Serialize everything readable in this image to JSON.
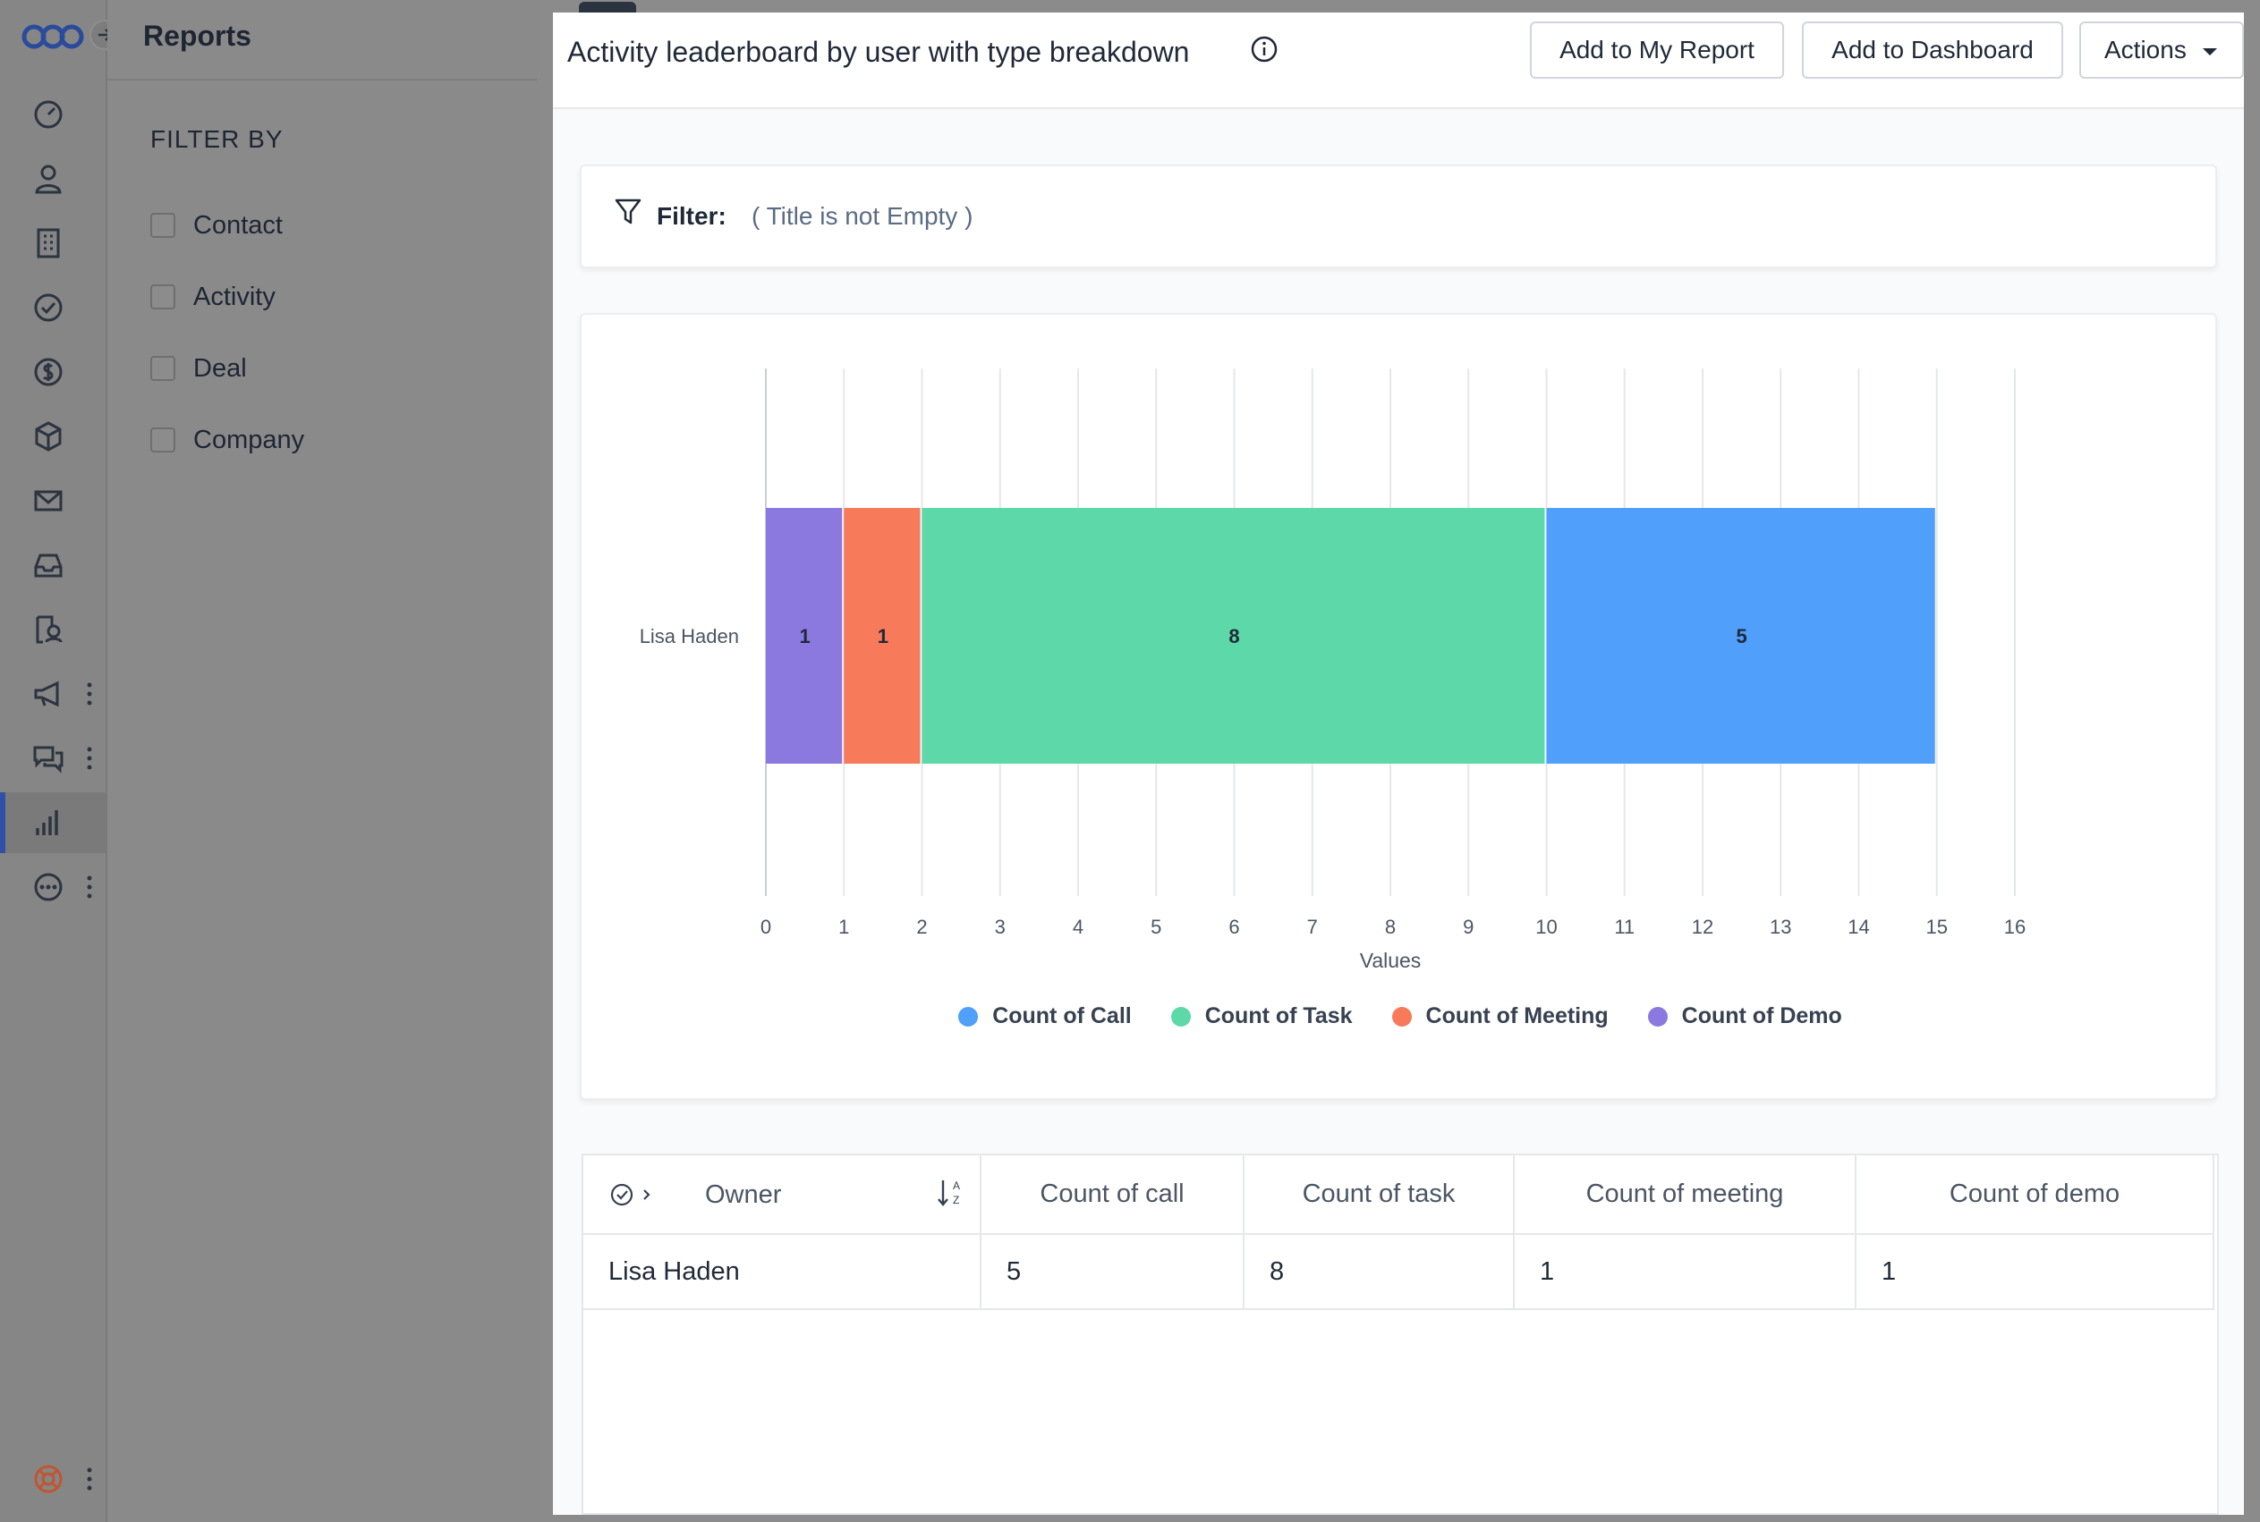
{
  "app": {
    "panel_title": "Reports",
    "filter_by": "FILTER BY",
    "filter_options": [
      "Contact",
      "Activity",
      "Deal",
      "Company"
    ],
    "close_label": "×"
  },
  "rail": {
    "icons": [
      "dashboard-icon",
      "person-icon",
      "building-icon",
      "check-circle-icon",
      "dollar-icon",
      "cube-icon",
      "mail-icon",
      "inbox-icon",
      "service-icon",
      "megaphone-icon",
      "chat-icon",
      "bar-chart-icon",
      "more-icon",
      "help-lifebuoy-icon"
    ],
    "active": "bar-chart-icon"
  },
  "report": {
    "title": "Activity leaderboard by user with type breakdown",
    "buttons": {
      "add_to_my_report": "Add to My Report",
      "add_to_dashboard": "Add to Dashboard",
      "actions": "Actions"
    },
    "filter_label": "Filter:",
    "filter_value": "( Title is not Empty )"
  },
  "chart_data": {
    "type": "bar",
    "orientation": "horizontal",
    "stacked": true,
    "categories": [
      "Lisa Haden"
    ],
    "series": [
      {
        "name": "Count of Demo",
        "values": [
          1
        ],
        "color": "#8b79e0"
      },
      {
        "name": "Count of Meeting",
        "values": [
          1
        ],
        "color": "#f77a5a"
      },
      {
        "name": "Count of Task",
        "values": [
          8
        ],
        "color": "#5dd8a8"
      },
      {
        "name": "Count of Call",
        "values": [
          5
        ],
        "color": "#4f9ffb"
      }
    ],
    "legend_order": [
      "Count of Call",
      "Count of Task",
      "Count of Meeting",
      "Count of Demo"
    ],
    "xlabel": "Values",
    "xlim": [
      0,
      16
    ],
    "xticks": [
      "0",
      "1",
      "2",
      "3",
      "4",
      "5",
      "6",
      "7",
      "8",
      "9",
      "10",
      "11",
      "12",
      "13",
      "14",
      "15",
      "16"
    ],
    "grid": true,
    "legend_position": "bottom"
  },
  "table": {
    "columns": [
      "Owner",
      "Count of call",
      "Count of task",
      "Count of meeting",
      "Count of demo"
    ],
    "rows": [
      [
        "Lisa Haden",
        "5",
        "8",
        "1",
        "1"
      ]
    ]
  }
}
